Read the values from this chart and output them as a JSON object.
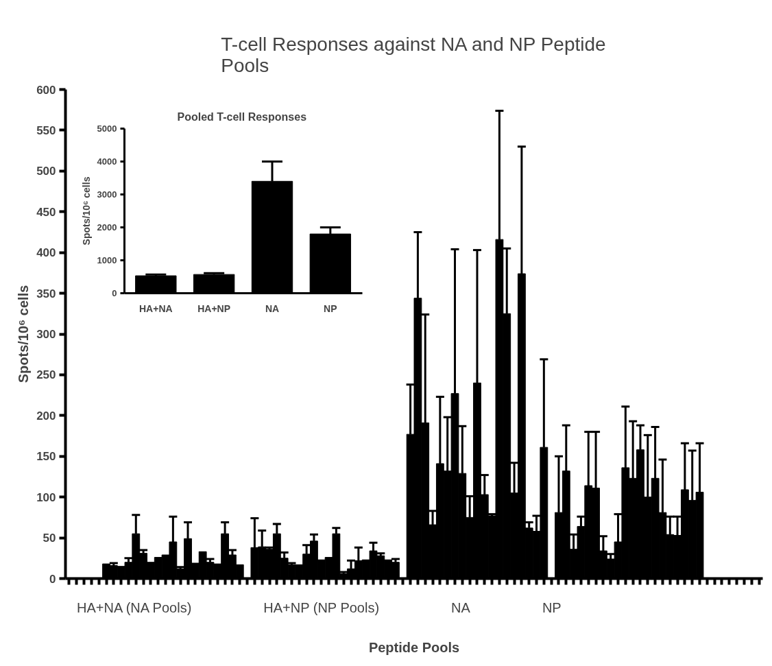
{
  "chart_data": [
    {
      "type": "bar",
      "title": "T-cell Responses against NA and NP Peptide Pools",
      "xlabel": "Peptide Pools",
      "ylabel": "Spots/10⁶ cells",
      "categories": [
        null,
        null,
        null,
        null,
        null,
        null,
        null,
        null,
        null,
        null,
        null,
        null,
        null,
        null,
        null,
        null,
        null,
        null,
        null,
        null,
        null,
        null,
        null,
        null,
        null,
        null,
        null,
        null,
        null,
        null,
        null,
        null,
        null,
        null,
        null,
        null,
        null,
        null,
        null,
        null,
        null,
        null,
        null,
        null,
        null,
        null,
        null,
        null,
        null,
        null,
        null,
        null,
        null,
        null,
        null,
        null,
        null,
        null,
        null,
        null,
        null,
        null,
        null,
        null,
        null,
        null,
        null,
        null,
        null,
        null,
        null,
        null,
        null,
        null,
        null,
        null,
        null,
        null,
        null,
        null,
        null,
        null,
        null,
        null,
        null,
        null,
        null,
        null,
        null,
        null,
        null,
        null,
        null,
        null
      ],
      "ylim": [
        0,
        600
      ],
      "yticks": [
        0,
        50,
        100,
        150,
        200,
        250,
        300,
        350,
        400,
        450,
        500,
        550,
        600
      ],
      "tick_labels": "y",
      "grid": false,
      "legend": "bottom",
      "series": [
        {
          "name": "HA+NA (NA Pools)",
          "color": "#000000",
          "values": [
            null,
            null,
            null,
            null,
            null,
            18,
            16,
            15,
            20,
            55,
            31,
            20,
            26,
            29,
            45,
            12,
            49,
            17,
            33,
            20,
            18,
            55,
            29,
            17,
            null,
            null,
            null,
            null,
            null,
            null,
            null,
            null,
            null,
            null,
            null,
            null,
            null,
            null,
            null,
            null,
            null,
            null,
            null,
            null,
            null,
            null,
            null,
            null,
            null,
            null,
            null,
            null,
            null,
            null,
            null,
            null,
            null,
            null,
            null,
            null,
            null,
            null,
            null,
            null,
            null,
            null,
            null,
            null,
            null,
            null,
            null,
            null,
            null,
            null,
            null,
            null,
            null,
            null,
            null,
            null,
            null,
            null,
            null,
            null,
            null,
            null,
            null,
            null,
            null,
            null,
            null,
            null,
            null,
            null
          ],
          "errors": [
            null,
            null,
            null,
            null,
            null,
            null,
            [
              16,
              19
            ],
            null,
            [
              20,
              25
            ],
            [
              55,
              78
            ],
            [
              31,
              35
            ],
            null,
            null,
            null,
            [
              45,
              76
            ],
            [
              12,
              14
            ],
            [
              49,
              69
            ],
            [
              17,
              18
            ],
            null,
            [
              20,
              24
            ],
            null,
            [
              55,
              69
            ],
            [
              29,
              35
            ],
            null,
            null,
            null,
            null,
            null,
            null,
            null,
            null,
            null,
            null,
            null,
            null,
            null,
            null,
            null,
            null,
            null,
            null,
            null,
            null,
            null,
            null,
            null,
            null,
            null,
            null,
            null,
            null,
            null,
            null,
            null,
            null,
            null,
            null,
            null,
            null,
            null,
            null,
            null,
            null,
            null,
            null,
            null,
            null,
            null,
            null,
            null,
            null,
            null,
            null,
            null,
            null,
            null,
            null,
            null,
            null,
            null,
            null,
            null,
            null,
            null,
            null,
            null,
            null,
            null,
            null,
            null,
            null,
            null,
            null,
            null
          ]
        },
        {
          "name": "HA+NP (NP Pools)",
          "color": "#000000",
          "values": [
            null,
            null,
            null,
            null,
            null,
            null,
            null,
            null,
            null,
            null,
            null,
            null,
            null,
            null,
            null,
            null,
            null,
            null,
            null,
            null,
            null,
            null,
            null,
            null,
            null,
            38,
            39,
            36,
            55,
            25,
            17,
            17,
            30,
            46,
            23,
            26,
            55,
            6,
            12,
            22,
            23,
            34,
            28,
            23,
            20,
            null,
            null,
            null,
            null,
            null,
            null,
            null,
            null,
            null,
            null,
            null,
            null,
            null,
            null,
            null,
            null,
            null,
            null,
            null,
            null,
            null,
            null,
            null,
            null,
            null,
            null,
            null,
            null,
            null,
            null,
            null,
            null,
            null,
            null,
            null,
            null,
            null,
            null,
            null,
            null,
            null,
            null,
            null,
            null,
            null,
            null,
            null,
            null,
            null
          ],
          "errors": [
            null,
            null,
            null,
            null,
            null,
            null,
            null,
            null,
            null,
            null,
            null,
            null,
            null,
            null,
            null,
            null,
            null,
            null,
            null,
            null,
            null,
            null,
            null,
            null,
            null,
            [
              38,
              74
            ],
            [
              39,
              59
            ],
            [
              36,
              38
            ],
            [
              55,
              67
            ],
            [
              25,
              32
            ],
            [
              17,
              19
            ],
            null,
            [
              30,
              41
            ],
            [
              46,
              54
            ],
            null,
            null,
            [
              55,
              62
            ],
            [
              6,
              8
            ],
            [
              12,
              22
            ],
            [
              22,
              38
            ],
            null,
            [
              34,
              44
            ],
            [
              28,
              31
            ],
            null,
            [
              20,
              24
            ],
            null,
            null,
            null,
            null,
            null,
            null,
            null,
            null,
            null,
            null,
            null,
            null,
            null,
            null,
            null,
            null,
            null,
            null,
            null,
            null,
            null,
            null,
            null,
            null,
            null,
            null,
            null,
            null,
            null,
            null,
            null,
            null,
            null,
            null,
            null,
            null,
            null,
            null,
            null,
            null,
            null,
            null,
            null,
            null,
            null,
            null,
            null,
            null,
            null
          ]
        },
        {
          "name": "NA",
          "color": "#000000",
          "values": [
            null,
            null,
            null,
            null,
            null,
            null,
            null,
            null,
            null,
            null,
            null,
            null,
            null,
            null,
            null,
            null,
            null,
            null,
            null,
            null,
            null,
            null,
            null,
            null,
            null,
            null,
            null,
            null,
            null,
            null,
            null,
            null,
            null,
            null,
            null,
            null,
            null,
            null,
            null,
            null,
            null,
            null,
            null,
            null,
            null,
            null,
            177,
            344,
            191,
            66,
            141,
            132,
            227,
            129,
            75,
            240,
            103,
            77,
            416,
            325,
            105,
            374,
            62,
            58,
            161,
            null,
            null,
            null,
            null,
            null,
            null,
            null,
            null,
            null,
            null,
            null,
            null,
            null,
            null,
            null,
            null,
            null,
            null,
            null,
            null,
            null,
            null,
            null,
            null,
            null,
            null,
            null,
            null,
            null
          ],
          "errors": [
            null,
            null,
            null,
            null,
            null,
            null,
            null,
            null,
            null,
            null,
            null,
            null,
            null,
            null,
            null,
            null,
            null,
            null,
            null,
            null,
            null,
            null,
            null,
            null,
            null,
            null,
            null,
            null,
            null,
            null,
            null,
            null,
            null,
            null,
            null,
            null,
            null,
            null,
            null,
            null,
            null,
            null,
            null,
            null,
            null,
            null,
            [
              177,
              238
            ],
            [
              344,
              425
            ],
            [
              191,
              324
            ],
            [
              66,
              83
            ],
            [
              141,
              223
            ],
            [
              132,
              198
            ],
            [
              227,
              404
            ],
            [
              129,
              187
            ],
            [
              75,
              101
            ],
            [
              240,
              403
            ],
            [
              103,
              127
            ],
            [
              77,
              79
            ],
            [
              416,
              574
            ],
            [
              325,
              405
            ],
            [
              105,
              142
            ],
            [
              374,
              530
            ],
            [
              62,
              69
            ],
            [
              58,
              77
            ],
            [
              161,
              269
            ],
            null,
            null,
            null,
            null,
            null,
            null,
            null,
            null,
            null,
            null,
            null,
            null,
            null,
            null,
            null,
            null,
            null,
            null,
            null,
            null,
            null,
            null,
            null,
            null,
            null,
            null,
            null,
            null,
            null
          ]
        },
        {
          "name": "NP",
          "color": "#000000",
          "values": [
            null,
            null,
            null,
            null,
            null,
            null,
            null,
            null,
            null,
            null,
            null,
            null,
            null,
            null,
            null,
            null,
            null,
            null,
            null,
            null,
            null,
            null,
            null,
            null,
            null,
            null,
            null,
            null,
            null,
            null,
            null,
            null,
            null,
            null,
            null,
            null,
            null,
            null,
            null,
            null,
            null,
            null,
            null,
            null,
            null,
            null,
            null,
            null,
            null,
            null,
            null,
            null,
            null,
            null,
            null,
            null,
            null,
            null,
            null,
            null,
            null,
            null,
            null,
            null,
            null,
            null,
            81,
            132,
            36,
            64,
            114,
            111,
            34,
            24,
            45,
            136,
            123,
            158,
            100,
            123,
            81,
            54,
            53,
            109,
            96,
            106,
            null,
            null,
            null,
            null,
            null,
            null,
            null,
            null
          ],
          "errors": [
            null,
            null,
            null,
            null,
            null,
            null,
            null,
            null,
            null,
            null,
            null,
            null,
            null,
            null,
            null,
            null,
            null,
            null,
            null,
            null,
            null,
            null,
            null,
            null,
            null,
            null,
            null,
            null,
            null,
            null,
            null,
            null,
            null,
            null,
            null,
            null,
            null,
            null,
            null,
            null,
            null,
            null,
            null,
            null,
            null,
            null,
            null,
            null,
            null,
            null,
            null,
            null,
            null,
            null,
            null,
            null,
            null,
            null,
            null,
            null,
            null,
            null,
            null,
            null,
            null,
            null,
            [
              81,
              150
            ],
            [
              132,
              188
            ],
            [
              36,
              54
            ],
            [
              64,
              76
            ],
            [
              114,
              180
            ],
            [
              111,
              180
            ],
            [
              34,
              52
            ],
            [
              24,
              30
            ],
            [
              45,
              79
            ],
            [
              136,
              211
            ],
            [
              123,
              193
            ],
            [
              158,
              188
            ],
            [
              100,
              176
            ],
            [
              123,
              186
            ],
            [
              81,
              146
            ],
            [
              54,
              76
            ],
            [
              53,
              76
            ],
            [
              109,
              166
            ],
            [
              96,
              157
            ],
            [
              106,
              166
            ],
            null,
            null,
            null,
            null,
            null,
            null,
            null,
            null
          ]
        }
      ]
    },
    {
      "type": "bar",
      "title": "Pooled  T-cell Responses",
      "ylabel": "Spots/10⁶ cells",
      "categories": [
        "HA+NA",
        "HA+NP",
        "NA",
        "NP"
      ],
      "values": [
        530,
        570,
        3400,
        1800
      ],
      "errors": [
        [
          530,
          570
        ],
        [
          570,
          610
        ],
        [
          3400,
          4000
        ],
        [
          1800,
          2000
        ]
      ],
      "color": "#000000",
      "ylim": [
        0,
        5000
      ],
      "yticks": [
        0,
        1000,
        2000,
        3000,
        4000,
        5000
      ],
      "grid": false
    }
  ]
}
